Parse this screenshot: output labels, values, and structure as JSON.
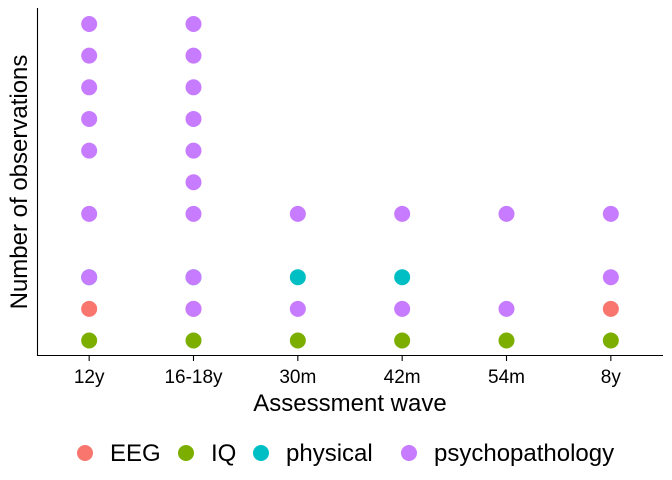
{
  "chart_data": {
    "type": "scatter",
    "xlabel": "Assessment wave",
    "ylabel": "Number of observations",
    "categories": [
      "12y",
      "16-18y",
      "30m",
      "42m",
      "54m",
      "8y"
    ],
    "ylim": [
      0,
      10.5
    ],
    "grid": false,
    "legend_position": "bottom",
    "colors": {
      "EEG": "#F8766D",
      "IQ": "#7CAE00",
      "physical": "#00BFC4",
      "psychopathology": "#C77CFF"
    },
    "series": [
      {
        "name": "EEG",
        "points": [
          {
            "x": "12y",
            "y": 1
          },
          {
            "x": "16-18y",
            "y": 1
          },
          {
            "x": "8y",
            "y": 1
          }
        ]
      },
      {
        "name": "IQ",
        "points": [
          {
            "x": "12y",
            "y": 0
          },
          {
            "x": "16-18y",
            "y": 0
          },
          {
            "x": "30m",
            "y": 0
          },
          {
            "x": "42m",
            "y": 0
          },
          {
            "x": "54m",
            "y": 0
          },
          {
            "x": "8y",
            "y": 0
          }
        ]
      },
      {
        "name": "physical",
        "points": [
          {
            "x": "12y",
            "y": 2
          },
          {
            "x": "16-18y",
            "y": 2
          },
          {
            "x": "30m",
            "y": 2
          },
          {
            "x": "42m",
            "y": 2
          }
        ]
      },
      {
        "name": "psychopathology",
        "points": [
          {
            "x": "12y",
            "y": 2
          },
          {
            "x": "12y",
            "y": 4
          },
          {
            "x": "12y",
            "y": 6
          },
          {
            "x": "12y",
            "y": 7
          },
          {
            "x": "12y",
            "y": 8
          },
          {
            "x": "12y",
            "y": 9
          },
          {
            "x": "12y",
            "y": 10
          },
          {
            "x": "16-18y",
            "y": 1
          },
          {
            "x": "16-18y",
            "y": 2
          },
          {
            "x": "16-18y",
            "y": 4
          },
          {
            "x": "16-18y",
            "y": 5
          },
          {
            "x": "16-18y",
            "y": 6
          },
          {
            "x": "16-18y",
            "y": 7
          },
          {
            "x": "16-18y",
            "y": 8
          },
          {
            "x": "16-18y",
            "y": 9
          },
          {
            "x": "16-18y",
            "y": 10
          },
          {
            "x": "30m",
            "y": 1
          },
          {
            "x": "30m",
            "y": 4
          },
          {
            "x": "42m",
            "y": 1
          },
          {
            "x": "42m",
            "y": 4
          },
          {
            "x": "54m",
            "y": 1
          },
          {
            "x": "54m",
            "y": 4
          },
          {
            "x": "8y",
            "y": 2
          },
          {
            "x": "8y",
            "y": 4
          }
        ]
      }
    ]
  }
}
